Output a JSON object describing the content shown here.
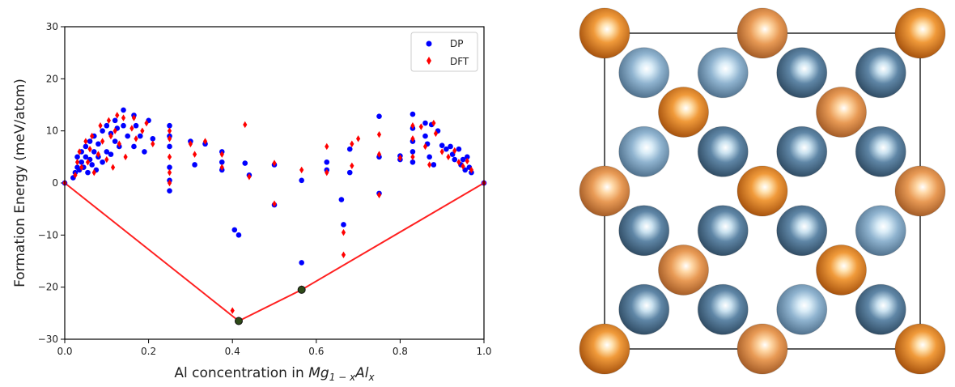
{
  "chart_data": {
    "type": "scatter",
    "xlabel_prefix": "Al concentration in ",
    "xlabel_formula": "Mg",
    "xlabel_sub1": "1 − x",
    "xlabel_formula2": "Al",
    "xlabel_sub2": "x",
    "ylabel": "Formation Energy (meV/atom)",
    "xlim": [
      0.0,
      1.0
    ],
    "ylim": [
      -30,
      30
    ],
    "xticks": [
      "0.0",
      "0.2",
      "0.4",
      "0.6",
      "0.8",
      "1.0"
    ],
    "yticks": [
      "−30",
      "−20",
      "−10",
      "0",
      "10",
      "20",
      "30"
    ],
    "legend_position": "top-right",
    "series": [
      {
        "name": "DP",
        "color": "#0000ff",
        "marker": "circle",
        "points": [
          [
            0.0,
            0.0
          ],
          [
            0.02,
            1.0
          ],
          [
            0.025,
            2.0
          ],
          [
            0.03,
            3.0
          ],
          [
            0.03,
            5.0
          ],
          [
            0.035,
            2.5
          ],
          [
            0.04,
            4.0
          ],
          [
            0.04,
            6.0
          ],
          [
            0.045,
            3.0
          ],
          [
            0.05,
            5.0
          ],
          [
            0.05,
            7.0
          ],
          [
            0.055,
            2.0
          ],
          [
            0.06,
            4.5
          ],
          [
            0.06,
            8.0
          ],
          [
            0.065,
            3.5
          ],
          [
            0.07,
            6.0
          ],
          [
            0.07,
            9.0
          ],
          [
            0.075,
            2.5
          ],
          [
            0.08,
            5.0
          ],
          [
            0.08,
            7.5
          ],
          [
            0.09,
            4.0
          ],
          [
            0.09,
            10.0
          ],
          [
            0.1,
            6.0
          ],
          [
            0.1,
            11.0
          ],
          [
            0.11,
            5.5
          ],
          [
            0.11,
            9.5
          ],
          [
            0.12,
            8.0
          ],
          [
            0.12,
            12.0
          ],
          [
            0.125,
            10.5
          ],
          [
            0.13,
            7.0
          ],
          [
            0.14,
            14.0
          ],
          [
            0.14,
            11.0
          ],
          [
            0.15,
            9.0
          ],
          [
            0.165,
            13.0
          ],
          [
            0.165,
            7.0
          ],
          [
            0.17,
            11.0
          ],
          [
            0.18,
            9.0
          ],
          [
            0.19,
            6.0
          ],
          [
            0.2,
            12.0
          ],
          [
            0.21,
            8.5
          ],
          [
            0.25,
            11.0
          ],
          [
            0.25,
            9.0
          ],
          [
            0.25,
            7.0
          ],
          [
            0.25,
            3.0
          ],
          [
            0.25,
            0.5
          ],
          [
            0.25,
            -1.5
          ],
          [
            0.3,
            8.0
          ],
          [
            0.31,
            3.5
          ],
          [
            0.335,
            7.5
          ],
          [
            0.375,
            6.0
          ],
          [
            0.375,
            4.0
          ],
          [
            0.375,
            2.5
          ],
          [
            0.405,
            -9.0
          ],
          [
            0.415,
            -10.0
          ],
          [
            0.43,
            3.8
          ],
          [
            0.44,
            1.5
          ],
          [
            0.415,
            -26.5
          ],
          [
            0.5,
            3.5
          ],
          [
            0.5,
            -4.2
          ],
          [
            0.565,
            -15.3
          ],
          [
            0.565,
            0.5
          ],
          [
            0.565,
            -20.5
          ],
          [
            0.625,
            4.0
          ],
          [
            0.625,
            2.5
          ],
          [
            0.66,
            -3.2
          ],
          [
            0.665,
            -8.0
          ],
          [
            0.68,
            6.5
          ],
          [
            0.68,
            2.0
          ],
          [
            0.75,
            12.8
          ],
          [
            0.75,
            -2.0
          ],
          [
            0.75,
            5.0
          ],
          [
            0.8,
            4.5
          ],
          [
            0.8,
            5.2
          ],
          [
            0.83,
            13.2
          ],
          [
            0.83,
            10.5
          ],
          [
            0.83,
            8.0
          ],
          [
            0.83,
            6.0
          ],
          [
            0.83,
            4.0
          ],
          [
            0.86,
            11.5
          ],
          [
            0.86,
            9.0
          ],
          [
            0.865,
            7.5
          ],
          [
            0.87,
            5.0
          ],
          [
            0.875,
            11.2
          ],
          [
            0.88,
            3.5
          ],
          [
            0.89,
            10.0
          ],
          [
            0.9,
            7.2
          ],
          [
            0.91,
            6.5
          ],
          [
            0.92,
            7.0
          ],
          [
            0.925,
            5.5
          ],
          [
            0.93,
            4.5
          ],
          [
            0.94,
            6.5
          ],
          [
            0.945,
            3.5
          ],
          [
            0.95,
            4.5
          ],
          [
            0.955,
            2.5
          ],
          [
            0.96,
            5.0
          ],
          [
            0.965,
            3.0
          ],
          [
            0.97,
            2.0
          ],
          [
            1.0,
            0.0
          ]
        ]
      },
      {
        "name": "DFT",
        "color": "#ff0000",
        "marker": "diamond",
        "points": [
          [
            0.0,
            0.0
          ],
          [
            0.025,
            1.5
          ],
          [
            0.03,
            4.0
          ],
          [
            0.035,
            6.0
          ],
          [
            0.04,
            3.0
          ],
          [
            0.05,
            8.0
          ],
          [
            0.055,
            4.0
          ],
          [
            0.06,
            6.5
          ],
          [
            0.065,
            9.0
          ],
          [
            0.07,
            2.0
          ],
          [
            0.08,
            5.5
          ],
          [
            0.085,
            11.0
          ],
          [
            0.09,
            8.0
          ],
          [
            0.1,
            4.5
          ],
          [
            0.105,
            12.0
          ],
          [
            0.11,
            9.0
          ],
          [
            0.115,
            3.0
          ],
          [
            0.12,
            10.0
          ],
          [
            0.125,
            13.0
          ],
          [
            0.13,
            7.5
          ],
          [
            0.14,
            12.5
          ],
          [
            0.145,
            5.0
          ],
          [
            0.16,
            10.5
          ],
          [
            0.165,
            12.5
          ],
          [
            0.17,
            8.5
          ],
          [
            0.185,
            10.0
          ],
          [
            0.195,
            11.5
          ],
          [
            0.21,
            7.5
          ],
          [
            0.25,
            10.0
          ],
          [
            0.25,
            8.5
          ],
          [
            0.25,
            5.0
          ],
          [
            0.25,
            2.0
          ],
          [
            0.25,
            0.0
          ],
          [
            0.3,
            7.5
          ],
          [
            0.31,
            5.5
          ],
          [
            0.335,
            8.0
          ],
          [
            0.375,
            5.5
          ],
          [
            0.375,
            3.0
          ],
          [
            0.4,
            -24.5
          ],
          [
            0.43,
            11.2
          ],
          [
            0.44,
            1.2
          ],
          [
            0.415,
            -26.3
          ],
          [
            0.5,
            3.8
          ],
          [
            0.5,
            -4.0
          ],
          [
            0.565,
            2.5
          ],
          [
            0.565,
            -20.3
          ],
          [
            0.625,
            7.0
          ],
          [
            0.625,
            2.0
          ],
          [
            0.665,
            -9.5
          ],
          [
            0.665,
            -13.8
          ],
          [
            0.685,
            3.3
          ],
          [
            0.685,
            7.5
          ],
          [
            0.7,
            8.5
          ],
          [
            0.75,
            9.3
          ],
          [
            0.75,
            5.5
          ],
          [
            0.75,
            -2.3
          ],
          [
            0.8,
            4.8
          ],
          [
            0.83,
            11.0
          ],
          [
            0.83,
            8.5
          ],
          [
            0.83,
            5.0
          ],
          [
            0.85,
            10.8
          ],
          [
            0.86,
            7.0
          ],
          [
            0.87,
            3.5
          ],
          [
            0.88,
            11.5
          ],
          [
            0.885,
            9.5
          ],
          [
            0.9,
            6.0
          ],
          [
            0.915,
            5.0
          ],
          [
            0.93,
            6.2
          ],
          [
            0.94,
            4.0
          ],
          [
            0.95,
            3.2
          ],
          [
            0.96,
            4.2
          ],
          [
            0.97,
            2.5
          ],
          [
            1.0,
            0.0
          ]
        ]
      }
    ],
    "hull_line": {
      "color": "#ff2020",
      "points": [
        [
          0.0,
          0.0
        ],
        [
          0.415,
          -26.5
        ],
        [
          0.565,
          -20.5
        ],
        [
          1.0,
          0.0
        ]
      ]
    },
    "hull_markers": [
      [
        0.415,
        -26.5
      ],
      [
        0.565,
        -20.5
      ]
    ]
  },
  "crystal": {
    "orange_color": "#e07a18",
    "blue_colors": [
      "#8fb3cf",
      "#5f86a6"
    ],
    "atoms": [
      {
        "c": 0,
        "r": 0,
        "type": "orange",
        "shade": 0
      },
      {
        "c": 2,
        "r": 0,
        "type": "orange",
        "shade": 1
      },
      {
        "c": 4,
        "r": 0,
        "type": "orange",
        "shade": 0
      },
      {
        "c": 0.5,
        "r": 0.5,
        "type": "blue",
        "shade": 0
      },
      {
        "c": 1.5,
        "r": 0.5,
        "type": "blue",
        "shade": 0
      },
      {
        "c": 2.5,
        "r": 0.5,
        "type": "blue",
        "shade": 1
      },
      {
        "c": 3.5,
        "r": 0.5,
        "type": "blue",
        "shade": 1
      },
      {
        "c": 1,
        "r": 1,
        "type": "orange",
        "shade": 0
      },
      {
        "c": 3,
        "r": 1,
        "type": "orange",
        "shade": 1
      },
      {
        "c": 0.5,
        "r": 1.5,
        "type": "blue",
        "shade": 0
      },
      {
        "c": 1.5,
        "r": 1.5,
        "type": "blue",
        "shade": 1
      },
      {
        "c": 2.5,
        "r": 1.5,
        "type": "blue",
        "shade": 1
      },
      {
        "c": 3.5,
        "r": 1.5,
        "type": "blue",
        "shade": 1
      },
      {
        "c": 0,
        "r": 2,
        "type": "orange",
        "shade": 1
      },
      {
        "c": 2,
        "r": 2,
        "type": "orange",
        "shade": 0
      },
      {
        "c": 4,
        "r": 2,
        "type": "orange",
        "shade": 1
      },
      {
        "c": 0.5,
        "r": 2.5,
        "type": "blue",
        "shade": 1
      },
      {
        "c": 1.5,
        "r": 2.5,
        "type": "blue",
        "shade": 1
      },
      {
        "c": 2.5,
        "r": 2.5,
        "type": "blue",
        "shade": 1
      },
      {
        "c": 3.5,
        "r": 2.5,
        "type": "blue",
        "shade": 0
      },
      {
        "c": 1,
        "r": 3,
        "type": "orange",
        "shade": 1
      },
      {
        "c": 3,
        "r": 3,
        "type": "orange",
        "shade": 0
      },
      {
        "c": 0.5,
        "r": 3.5,
        "type": "blue",
        "shade": 1
      },
      {
        "c": 1.5,
        "r": 3.5,
        "type": "blue",
        "shade": 1
      },
      {
        "c": 2.5,
        "r": 3.5,
        "type": "blue",
        "shade": 0
      },
      {
        "c": 3.5,
        "r": 3.5,
        "type": "blue",
        "shade": 1
      },
      {
        "c": 0,
        "r": 4,
        "type": "orange",
        "shade": 0
      },
      {
        "c": 2,
        "r": 4,
        "type": "orange",
        "shade": 1
      },
      {
        "c": 4,
        "r": 4,
        "type": "orange",
        "shade": 0
      }
    ]
  }
}
